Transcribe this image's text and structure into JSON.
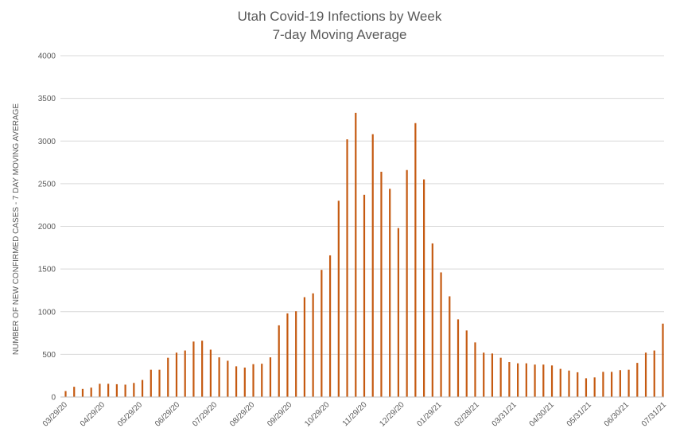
{
  "chart_data": {
    "type": "bar",
    "title": "Utah Covid-19 Infections by Week",
    "subtitle": "7-day Moving Average",
    "xlabel": "",
    "ylabel": "NUMBER OF NEW CONFIRMED CASES - 7 DAY MOVING AVERAGE",
    "ylim": [
      0,
      4000
    ],
    "yticks": [
      0,
      500,
      1000,
      1500,
      2000,
      2500,
      3000,
      3500,
      4000
    ],
    "grid": true,
    "legend": "none",
    "bar_color": "#C55A11",
    "x_tick_labels": [
      "03/29/20",
      "04/29/20",
      "05/29/20",
      "06/29/20",
      "07/29/20",
      "08/29/20",
      "09/29/20",
      "10/29/20",
      "11/29/20",
      "12/29/20",
      "01/29/21",
      "02/28/21",
      "03/31/21",
      "04/30/21",
      "05/31/21",
      "06/30/21",
      "07/31/21"
    ],
    "series": [
      {
        "values": [
          70,
          120,
          95,
          110,
          155,
          155,
          150,
          145,
          165,
          200,
          320,
          320,
          460,
          520,
          545,
          650,
          660,
          555,
          465,
          425,
          360,
          345,
          385,
          390,
          465,
          840,
          980,
          1005,
          1170,
          1215,
          1490,
          1660,
          2300,
          3020,
          3330,
          2370,
          3080,
          2640,
          2440,
          1980,
          2660,
          3210,
          2550,
          1800,
          1460,
          1180,
          910,
          780,
          640,
          520,
          510,
          460,
          410,
          395,
          395,
          380,
          380,
          370,
          330,
          310,
          290,
          220,
          230,
          295,
          295,
          315,
          320,
          400,
          520,
          545,
          860
        ]
      }
    ]
  }
}
